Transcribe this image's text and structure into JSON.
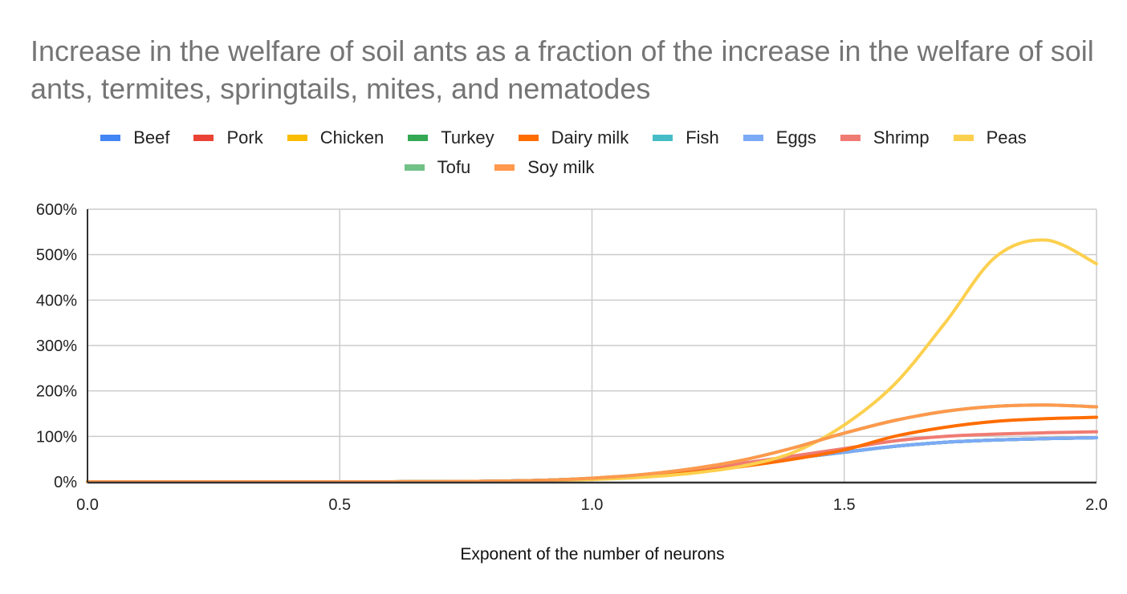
{
  "chart_data": {
    "type": "line",
    "title": "Increase in the welfare of soil ants as a fraction of the increase in the welfare of soil ants, termites, springtails, mites, and nematodes",
    "xlabel": "Exponent of the number of neurons",
    "ylabel": "",
    "xlim": [
      0.0,
      2.0
    ],
    "ylim": [
      0,
      600
    ],
    "x_ticks": [
      "0.0",
      "0.5",
      "1.0",
      "1.5",
      "2.0"
    ],
    "x_tick_values": [
      0.0,
      0.5,
      1.0,
      1.5,
      2.0
    ],
    "y_ticks": [
      "0%",
      "100%",
      "200%",
      "300%",
      "400%",
      "500%",
      "600%"
    ],
    "y_tick_values": [
      0,
      100,
      200,
      300,
      400,
      500,
      600
    ],
    "y_unit": "%",
    "grid": true,
    "legend_position": "top",
    "x": [
      0.0,
      0.1,
      0.2,
      0.3,
      0.4,
      0.5,
      0.6,
      0.7,
      0.8,
      0.9,
      1.0,
      1.1,
      1.2,
      1.3,
      1.4,
      1.5,
      1.6,
      1.7,
      1.8,
      1.9,
      2.0
    ],
    "series": [
      {
        "name": "Beef",
        "color": "#4285f4",
        "values": [
          0,
          0,
          0,
          0,
          0,
          0,
          0.1,
          0.3,
          1,
          3,
          7,
          13,
          24,
          38,
          52,
          65,
          78,
          87,
          92,
          95,
          97
        ]
      },
      {
        "name": "Pork",
        "color": "#ea4335",
        "values": [
          0,
          0,
          0,
          0,
          0,
          0,
          0.1,
          0.3,
          1,
          3,
          7,
          13,
          24,
          38,
          52,
          65,
          78,
          87,
          92,
          95,
          97
        ]
      },
      {
        "name": "Chicken",
        "color": "#fbbc04",
        "values": [
          0,
          0,
          0,
          0,
          0,
          0,
          0.1,
          0.3,
          1,
          3,
          7,
          13,
          24,
          38,
          52,
          65,
          78,
          87,
          92,
          95,
          97
        ]
      },
      {
        "name": "Turkey",
        "color": "#34a853",
        "values": [
          0,
          0,
          0,
          0,
          0,
          0,
          0.1,
          0.3,
          1,
          3,
          7,
          13,
          24,
          38,
          52,
          65,
          78,
          87,
          92,
          95,
          97
        ]
      },
      {
        "name": "Dairy milk",
        "color": "#ff6d01",
        "values": [
          0,
          0,
          0,
          0,
          0,
          0,
          0.1,
          0.3,
          1,
          3,
          6,
          12,
          21,
          34,
          50,
          70,
          100,
          120,
          133,
          139,
          142
        ]
      },
      {
        "name": "Fish",
        "color": "#46bdc6",
        "values": [
          0,
          0,
          0,
          0,
          0,
          0,
          0.1,
          0.3,
          1,
          3,
          7,
          13,
          24,
          38,
          52,
          65,
          78,
          87,
          92,
          95,
          97
        ]
      },
      {
        "name": "Eggs",
        "color": "#7baaf7",
        "values": [
          0,
          0,
          0,
          0,
          0,
          0,
          0.1,
          0.3,
          1,
          3,
          7,
          13,
          24,
          38,
          52,
          65,
          78,
          87,
          92,
          95,
          97
        ]
      },
      {
        "name": "Shrimp",
        "color": "#f07b72",
        "values": [
          0,
          0,
          0,
          0,
          0,
          0,
          0.1,
          0.3,
          1,
          3,
          7,
          14,
          26,
          41,
          57,
          73,
          90,
          100,
          105,
          108,
          110
        ]
      },
      {
        "name": "Peas",
        "color": "#fcd04f",
        "values": [
          0,
          0,
          0,
          0,
          0,
          0,
          0.1,
          0.2,
          0.6,
          2,
          5,
          10,
          19,
          35,
          65,
          125,
          215,
          350,
          495,
          532,
          480
        ]
      },
      {
        "name": "Tofu",
        "color": "#71c287",
        "values": [
          0,
          0,
          0,
          0,
          0,
          0,
          0.1,
          0.3,
          1,
          3,
          8,
          16,
          29,
          48,
          75,
          107,
          135,
          155,
          166,
          169,
          165
        ]
      },
      {
        "name": "Soy milk",
        "color": "#ff994d",
        "values": [
          0,
          0,
          0,
          0,
          0,
          0,
          0.1,
          0.3,
          1,
          3,
          8,
          16,
          29,
          48,
          75,
          107,
          135,
          155,
          166,
          169,
          165
        ]
      }
    ],
    "legend_rows": [
      [
        0,
        1,
        2,
        3,
        4,
        5,
        6,
        7,
        8
      ],
      [
        9,
        10
      ]
    ]
  }
}
